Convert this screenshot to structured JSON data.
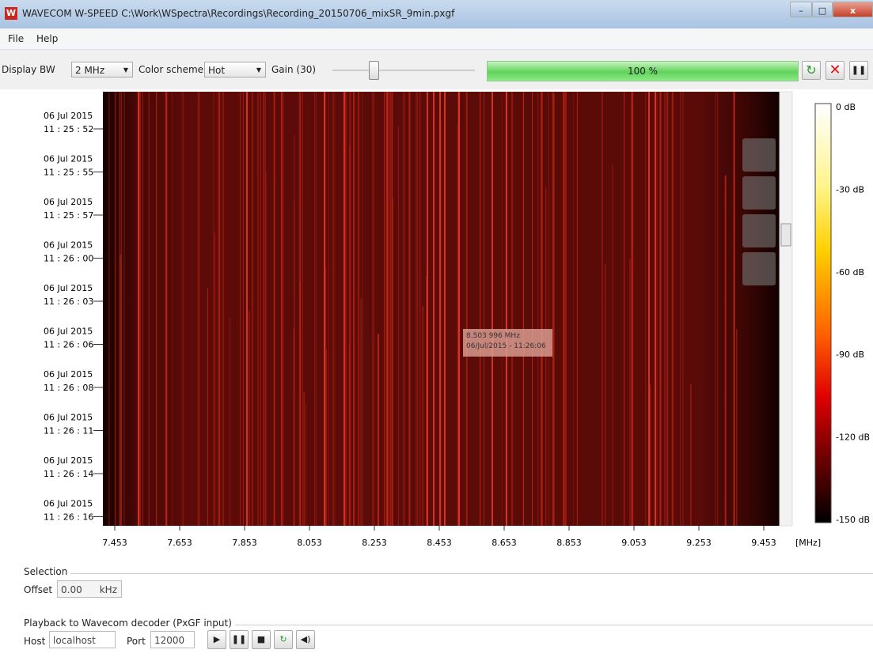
{
  "window": {
    "title": "WAVECOM W-SPEED C:\\Work\\WSpectra\\Recordings\\Recording_20150706_mixSR_9min.pxgf"
  },
  "menu": [
    "File",
    "Help"
  ],
  "toolbar": {
    "display_bw_label": "Display BW",
    "display_bw": "2 MHz",
    "color_scheme_label": "Color scheme",
    "color_scheme": "Hot",
    "gain": "Gain (30)",
    "progress": "100 %"
  },
  "spectrogram": {
    "time_labels": [
      {
        "date": "06 Jul 2015",
        "time": "11 : 25 : 52"
      },
      {
        "date": "06 Jul 2015",
        "time": "11 : 25 : 55"
      },
      {
        "date": "06 Jul 2015",
        "time": "11 : 25 : 57"
      },
      {
        "date": "06 Jul 2015",
        "time": "11 : 26 : 00"
      },
      {
        "date": "06 Jul 2015",
        "time": "11 : 26 : 03"
      },
      {
        "date": "06 Jul 2015",
        "time": "11 : 26 : 06"
      },
      {
        "date": "06 Jul 2015",
        "time": "11 : 26 : 08"
      },
      {
        "date": "06 Jul 2015",
        "time": "11 : 26 : 11"
      },
      {
        "date": "06 Jul 2015",
        "time": "11 : 26 : 14"
      },
      {
        "date": "06 Jul 2015",
        "time": "11 : 26 : 16"
      }
    ],
    "freq_ticks": [
      "7.453",
      "7.653",
      "7.853",
      "8.053",
      "8.253",
      "8.453",
      "8.653",
      "8.853",
      "9.053",
      "9.253",
      "9.453"
    ],
    "freq_unit": "[MHz]",
    "tooltip": [
      "8.503 996 MHz",
      "06/Jul/2015 - 11:26:06"
    ],
    "colorbar_ticks": [
      "0 dB",
      "-30 dB",
      "-60 dB",
      "-90 dB",
      "-120 dB",
      "-150 dB"
    ]
  },
  "selection": {
    "title": "Selection",
    "offset_label": "Offset",
    "offset_value": "0.00",
    "offset_unit": "kHz"
  },
  "playback": {
    "title": "Playback to Wavecom decoder (PxGF input)",
    "host_label": "Host",
    "host": "localhost",
    "port_label": "Port",
    "port": "12000"
  }
}
